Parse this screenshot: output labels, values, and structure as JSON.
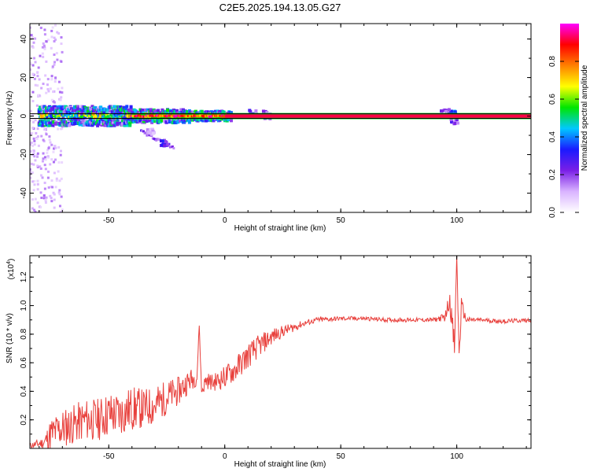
{
  "title": "C2E5.2025.194.13.05.G27",
  "colors": {
    "snr_line": "#e8403c",
    "guide_line": "#000000",
    "ridge": "#ff2a2a"
  },
  "colorbar": {
    "label": "Normalized spectral amplitude",
    "ticks": [
      "0.0",
      "0.2",
      "0.4",
      "0.6",
      "0.8"
    ],
    "tick_values": [
      0.0,
      0.2,
      0.4,
      0.6,
      0.8
    ],
    "range": [
      0,
      1
    ],
    "colormap": [
      "#ffffff",
      "#d9b3ff",
      "#7a1fe6",
      "#1a1aff",
      "#00c8ff",
      "#00e600",
      "#ffff00",
      "#ff8000",
      "#ff0000",
      "#ff00ff"
    ]
  },
  "chart_data": [
    {
      "type": "heatmap",
      "title": "C2E5.2025.194.13.05.G27",
      "xlabel": "Height of straight line (km)",
      "ylabel": "Frequency (Hz)",
      "xlim": [
        -84,
        132
      ],
      "ylim": [
        -50,
        48
      ],
      "xticks": [
        -50,
        0,
        50,
        100
      ],
      "xtick_labels": [
        "-50",
        "0",
        "50",
        "100"
      ],
      "yticks": [
        -40,
        -20,
        0,
        20,
        40
      ],
      "ytick_labels": [
        "-40",
        "-20",
        "0",
        "20",
        "40"
      ],
      "grid": false,
      "legend": "none",
      "guide_lines_hz": [
        1.2,
        -1.2
      ],
      "ridge": {
        "description_free": true,
        "x_start": 0,
        "x_end": 132,
        "freq_hz": 0
      },
      "features": [
        {
          "x": -26,
          "y": -14,
          "value": 0.35
        },
        {
          "x": -32,
          "y": -8,
          "value": 0.15
        },
        {
          "x": 98,
          "y": 1,
          "value": 0.45
        }
      ]
    },
    {
      "type": "line",
      "xlabel": "Height of straight line (km)",
      "ylabel": "SNR (10 * v/v)",
      "y_multiplier": "(x10",
      "y_multiplier_exp": "4",
      "xlim": [
        -84,
        132
      ],
      "ylim": [
        0,
        1.35
      ],
      "xticks": [
        -50,
        0,
        50,
        100
      ],
      "xtick_labels": [
        "-50",
        "0",
        "50",
        "100"
      ],
      "yticks": [
        0.2,
        0.4,
        0.6,
        0.8,
        1.0,
        1.2
      ],
      "ytick_labels": [
        "0.2",
        "0.4",
        "0.6",
        "0.8",
        "1.0",
        "1.2"
      ],
      "grid": false,
      "legend": "none",
      "series": [
        {
          "x": [
            -84,
            -78,
            -75,
            -70,
            -65,
            -60,
            -55,
            -50,
            -45,
            -40,
            -35,
            -30,
            -25,
            -20,
            -15,
            -12,
            -11,
            -10,
            -8,
            -5,
            0,
            5,
            10,
            15,
            20,
            25,
            30,
            35,
            40,
            50,
            60,
            70,
            80,
            90,
            95,
            97,
            99,
            100,
            101,
            102,
            104,
            110,
            120,
            132
          ],
          "y": [
            0.02,
            0.04,
            0.1,
            0.14,
            0.17,
            0.2,
            0.2,
            0.24,
            0.24,
            0.28,
            0.28,
            0.3,
            0.36,
            0.4,
            0.48,
            0.5,
            0.86,
            0.4,
            0.48,
            0.46,
            0.5,
            0.56,
            0.65,
            0.72,
            0.78,
            0.82,
            0.85,
            0.88,
            0.9,
            0.91,
            0.91,
            0.9,
            0.9,
            0.9,
            0.92,
            1.05,
            0.7,
            1.35,
            0.65,
            1.0,
            0.9,
            0.9,
            0.89,
            0.9
          ],
          "noise_amplitude": [
            0.02,
            0.04,
            0.12,
            0.14,
            0.14,
            0.15,
            0.15,
            0.16,
            0.16,
            0.16,
            0.14,
            0.14,
            0.12,
            0.1,
            0.08,
            0.06,
            0.0,
            0.05,
            0.06,
            0.06,
            0.08,
            0.09,
            0.09,
            0.08,
            0.06,
            0.04,
            0.03,
            0.02,
            0.02,
            0.015,
            0.015,
            0.015,
            0.015,
            0.015,
            0.03,
            0.08,
            0.1,
            0.0,
            0.1,
            0.06,
            0.02,
            0.015,
            0.015,
            0.015
          ]
        }
      ]
    }
  ]
}
